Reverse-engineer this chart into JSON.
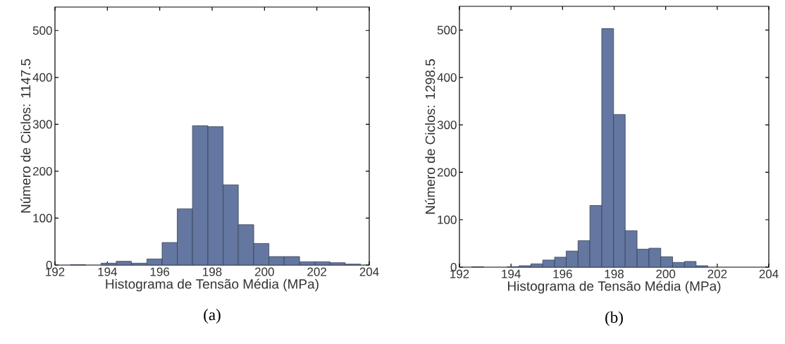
{
  "chart_data": [
    {
      "type": "histogram",
      "xlabel": "Histograma de Tensão Média (MPa)",
      "ylabel": "Número de Ciclos: 1147.5",
      "color": "#6477a0",
      "bins": [
        192.59,
        193.17,
        193.76,
        194.34,
        194.92,
        195.51,
        196.09,
        196.67,
        197.25,
        197.84,
        198.42,
        199.0,
        199.59,
        200.17,
        200.75,
        201.34,
        201.92,
        202.5,
        203.08,
        203.67
      ],
      "values": [
        1,
        0,
        4,
        8,
        4,
        13,
        48,
        120,
        297,
        295,
        171,
        86,
        46,
        18,
        18,
        7,
        7,
        5,
        2
      ],
      "xlim": [
        192,
        204
      ],
      "xticks": [
        192,
        194,
        196,
        198,
        200,
        202,
        204
      ],
      "ylim": [
        0,
        550
      ],
      "yticks": [
        0,
        100,
        200,
        300,
        400,
        500
      ],
      "annotations": [
        "(a)"
      ]
    },
    {
      "type": "histogram",
      "xlabel": "Histograma de Tensão Média (MPa)",
      "ylabel": "Número de Ciclos: 1298.5",
      "color": "#6477a0",
      "bins": [
        192.48,
        192.94,
        193.4,
        193.85,
        194.31,
        194.77,
        195.23,
        195.69,
        196.14,
        196.6,
        197.06,
        197.52,
        197.98,
        198.43,
        198.89,
        199.35,
        199.81,
        200.27,
        200.73,
        201.18,
        201.64
      ],
      "values": [
        1,
        0,
        0,
        1,
        3,
        7,
        15,
        21,
        34,
        56,
        130,
        503,
        322,
        77,
        38,
        40,
        22,
        10,
        12,
        3
      ],
      "xlim": [
        192,
        204
      ],
      "xticks": [
        192,
        194,
        196,
        198,
        200,
        202,
        204
      ],
      "ylim": [
        0,
        550
      ],
      "yticks": [
        0,
        100,
        200,
        300,
        400,
        500
      ],
      "annotations": [
        "(b)"
      ]
    }
  ]
}
